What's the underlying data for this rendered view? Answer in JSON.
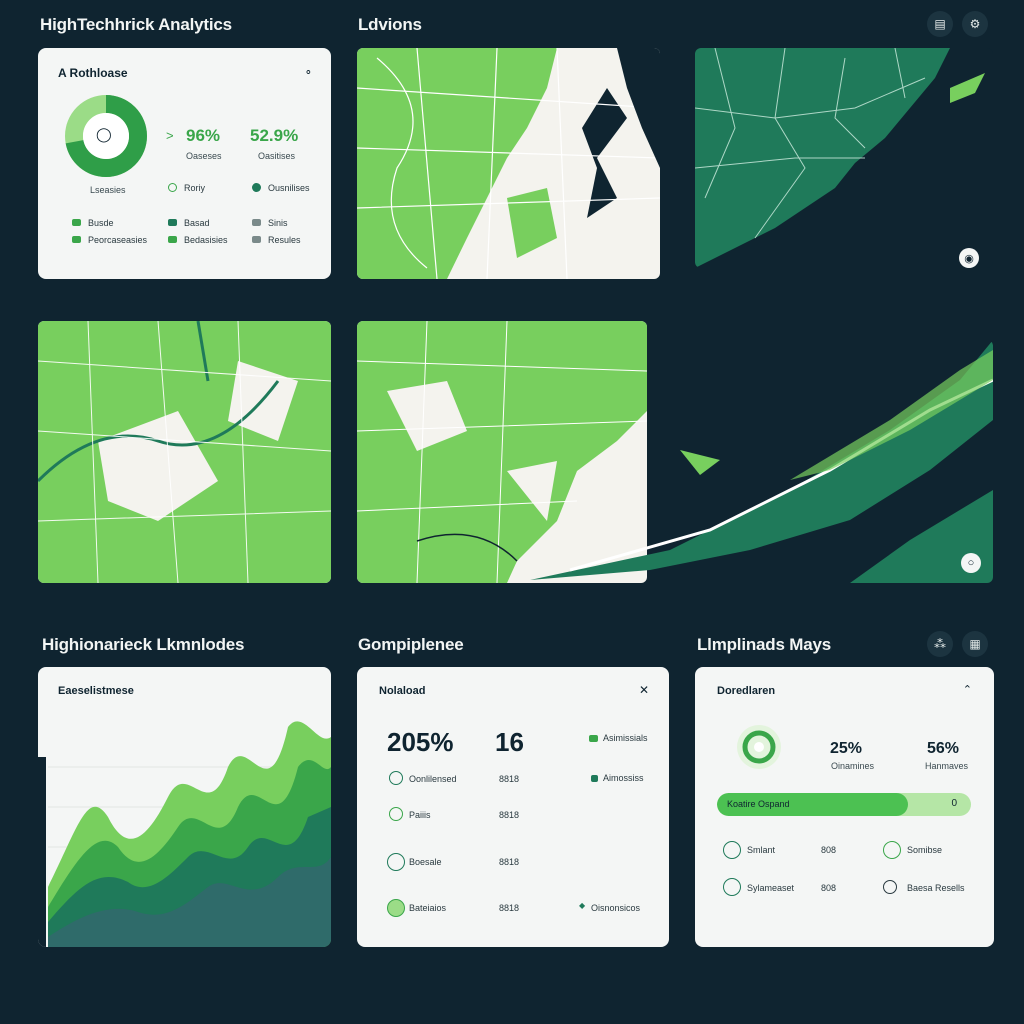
{
  "app": {
    "title": "HighTechhrick Analytics",
    "section_maps": "Ldvions",
    "section_bottom_left": "Highionarieck Lkmnlodes",
    "section_bottom_mid": "Gompiplenee",
    "section_bottom_right": "Llmplinads Mays"
  },
  "top_icons": [
    "chart-icon",
    "settings-icon"
  ],
  "summary_card": {
    "title": "A Rothloase",
    "donut_center_icon": "droplet-icon",
    "donut_caption": "Lseasies",
    "donut_fraction": 0.72,
    "stat1_value": "96%",
    "stat1_caption": "Oaseses",
    "stat2_value": "52.9%",
    "stat2_caption": "Oasitises",
    "legend": [
      {
        "label": "Roriy",
        "color": "#3aa64a"
      },
      {
        "label": "Ousnilises",
        "color": "#1f7a5a"
      },
      {
        "label": "Busde",
        "color": "#3aa64a"
      },
      {
        "label": "Basad",
        "color": "#1f7a5a"
      },
      {
        "label": "Sinis",
        "color": "#7a8a8a"
      },
      {
        "label": "Peorcaseasies",
        "color": "#3aa64a"
      },
      {
        "label": "Bedasisies",
        "color": "#3aa64a"
      },
      {
        "label": "Resules",
        "color": "#7a8a8a"
      }
    ]
  },
  "area_card": {
    "title": "Eaeselistmese"
  },
  "compliance_card": {
    "title": "Nolaload",
    "big_pct": "205%",
    "big_num": "16",
    "legend_top": "Asimissials",
    "legend_mid": "Aimossiss",
    "legend_bottom": "Oisnonsicos",
    "rows": [
      {
        "label": "Oonlilensed",
        "value": "8818"
      },
      {
        "label": "Paiiis",
        "value": "8818"
      },
      {
        "label": "Boesale",
        "value": "8818"
      },
      {
        "label": "Bateiaios",
        "value": "8818"
      }
    ]
  },
  "maps_card": {
    "title": "Doredlaren",
    "pct1": "25%",
    "pct1_caption": "Oinamines",
    "pct2": "56%",
    "pct2_caption": "Hanmaves",
    "progress_label": "Koatire Ospand",
    "progress_value": "0",
    "progress_fraction": 0.75,
    "rows": [
      {
        "label": "Smlant",
        "value": "808",
        "right": "Somibse"
      },
      {
        "label": "Sylameaset",
        "value": "808",
        "right": "Baesa Resells"
      }
    ]
  },
  "colors": {
    "bg": "#0f2430",
    "accent_green": "#3aa64a",
    "light_green": "#78cf5e",
    "teal": "#1f7a5a",
    "card": "#f4f6f5"
  }
}
